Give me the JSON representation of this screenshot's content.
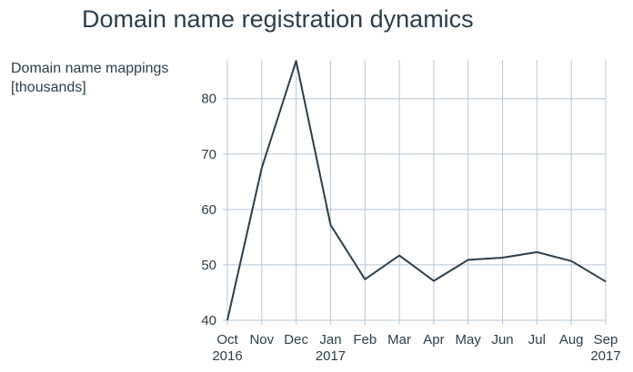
{
  "chart_data": {
    "type": "line",
    "title": "Domain name registration dynamics",
    "ylabel_lines": [
      "Domain name mappings",
      "[thousands]"
    ],
    "xlabel": "",
    "ylim": [
      40,
      87
    ],
    "y_ticks": [
      40,
      50,
      60,
      70,
      80
    ],
    "grid": true,
    "line_color": "#2d3e4a",
    "grid_color": "#b9c8d6",
    "x_ticks": [
      {
        "month": "Oct",
        "year": "2016"
      },
      {
        "month": "Nov",
        "year": ""
      },
      {
        "month": "Dec",
        "year": ""
      },
      {
        "month": "Jan",
        "year": "2017"
      },
      {
        "month": "Feb",
        "year": ""
      },
      {
        "month": "Mar",
        "year": ""
      },
      {
        "month": "Apr",
        "year": ""
      },
      {
        "month": "May",
        "year": ""
      },
      {
        "month": "Jun",
        "year": ""
      },
      {
        "month": "Jul",
        "year": ""
      },
      {
        "month": "Aug",
        "year": ""
      },
      {
        "month": "Sep",
        "year": "2017"
      }
    ],
    "x": [
      "2016-10",
      "2016-11",
      "2016-12",
      "2017-01",
      "2017-02",
      "2017-03",
      "2017-04",
      "2017-05",
      "2017-06",
      "2017-07",
      "2017-08",
      "2017-09"
    ],
    "values": [
      40,
      67.5,
      86.8,
      57.2,
      47.4,
      51.7,
      47.1,
      50.9,
      51.3,
      52.3,
      50.7,
      47.0
    ]
  }
}
